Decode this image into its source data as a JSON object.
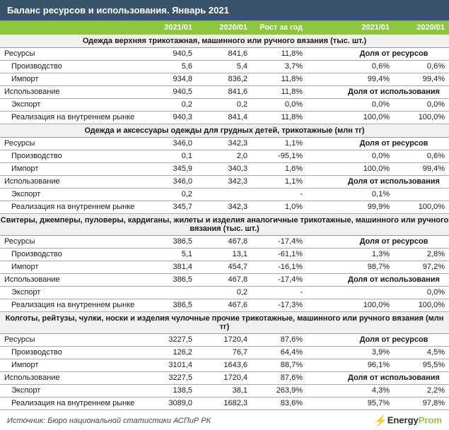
{
  "title": "Баланс ресурсов и использования. Январь 2021",
  "columns": {
    "c1": "2021/01",
    "c2": "2020/01",
    "c3": "Рост за год",
    "c4": "2021/01",
    "c5": "2020/01"
  },
  "share_labels": {
    "resources": "Доля от ресурсов",
    "usage": "Доля от использования"
  },
  "row_labels": {
    "resources": "Ресурсы",
    "production": "Производство",
    "import": "Импорт",
    "usage": "Использование",
    "export": "Экспорт",
    "domestic": "Реализация на внутреннем рынке"
  },
  "sections": [
    {
      "title": "Одежда верхняя трикотажная, машинного или ручного вязания (тыс. шт.)",
      "rows": {
        "resources": {
          "c1": "940,5",
          "c2": "841,6",
          "c3": "11,8%"
        },
        "production": {
          "c1": "5,6",
          "c2": "5,4",
          "c3": "3,7%",
          "c4": "0,6%",
          "c5": "0,6%"
        },
        "import": {
          "c1": "934,8",
          "c2": "836,2",
          "c3": "11,8%",
          "c4": "99,4%",
          "c5": "99,4%"
        },
        "usage": {
          "c1": "940,5",
          "c2": "841,6",
          "c3": "11,8%"
        },
        "export": {
          "c1": "0,2",
          "c2": "0,2",
          "c3": "0,0%",
          "c4": "0,0%",
          "c5": "0,0%"
        },
        "domestic": {
          "c1": "940,3",
          "c2": "841,4",
          "c3": "11,8%",
          "c4": "100,0%",
          "c5": "100,0%"
        }
      }
    },
    {
      "title": "Одежда и аксессуары одежды для грудных детей, трикотажные (млн тг)",
      "rows": {
        "resources": {
          "c1": "346,0",
          "c2": "342,3",
          "c3": "1,1%"
        },
        "production": {
          "c1": "0,1",
          "c2": "2,0",
          "c3": "-95,1%",
          "c4": "0,0%",
          "c5": "0,6%"
        },
        "import": {
          "c1": "345,9",
          "c2": "340,3",
          "c3": "1,6%",
          "c4": "100,0%",
          "c5": "99,4%"
        },
        "usage": {
          "c1": "346,0",
          "c2": "342,3",
          "c3": "1,1%"
        },
        "export": {
          "c1": "0,2",
          "c2": "",
          "c3": "-",
          "c4": "0,1%",
          "c5": ""
        },
        "domestic": {
          "c1": "345,7",
          "c2": "342,3",
          "c3": "1,0%",
          "c4": "99,9%",
          "c5": "100,0%"
        }
      }
    },
    {
      "title": "Свитеры, джемперы, пуловеры, кардиганы, жилеты и изделия аналогичные трикотажные, машинного или ручного вязания (тыс. шт.)",
      "rows": {
        "resources": {
          "c1": "386,5",
          "c2": "467,8",
          "c3": "-17,4%"
        },
        "production": {
          "c1": "5,1",
          "c2": "13,1",
          "c3": "-61,1%",
          "c4": "1,3%",
          "c5": "2,8%"
        },
        "import": {
          "c1": "381,4",
          "c2": "454,7",
          "c3": "-16,1%",
          "c4": "98,7%",
          "c5": "97,2%"
        },
        "usage": {
          "c1": "386,5",
          "c2": "467,8",
          "c3": "-17,4%"
        },
        "export": {
          "c1": "",
          "c2": "0,2",
          "c3": "-",
          "c4": "",
          "c5": "0,0%"
        },
        "domestic": {
          "c1": "386,5",
          "c2": "467,6",
          "c3": "-17,3%",
          "c4": "100,0%",
          "c5": "100,0%"
        }
      }
    },
    {
      "title": "Колготы, рейтузы, чулки, носки и изделия чулочные прочие трикотажные, машинного или ручного вязания (млн тг)",
      "rows": {
        "resources": {
          "c1": "3227,5",
          "c2": "1720,4",
          "c3": "87,6%"
        },
        "production": {
          "c1": "126,2",
          "c2": "76,7",
          "c3": "64,4%",
          "c4": "3,9%",
          "c5": "4,5%"
        },
        "import": {
          "c1": "3101,4",
          "c2": "1643,6",
          "c3": "88,7%",
          "c4": "96,1%",
          "c5": "95,5%"
        },
        "usage": {
          "c1": "3227,5",
          "c2": "1720,4",
          "c3": "87,6%"
        },
        "export": {
          "c1": "138,5",
          "c2": "38,1",
          "c3": "263,9%",
          "c4": "4,3%",
          "c5": "2,2%"
        },
        "domestic": {
          "c1": "3089,0",
          "c2": "1682,3",
          "c3": "83,6%",
          "c4": "95,7%",
          "c5": "97,8%"
        }
      }
    }
  ],
  "footer": {
    "source": "Источник: Бюро национальной статистики АСПиР РК",
    "logo_energy": "Energy",
    "logo_prom": "Prom"
  },
  "colors": {
    "title_bg": "#39546a",
    "header_bg": "#8cc63f",
    "section_bg": "#f0f0f0",
    "border": "#aaaaaa",
    "accent": "#8cc63f"
  }
}
